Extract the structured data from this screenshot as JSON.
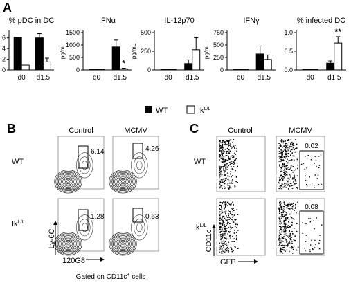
{
  "panel_labels": {
    "a": "A",
    "b": "B",
    "c": "C"
  },
  "legend": {
    "wt": "WT",
    "ik_base": "Ik",
    "ik_sup": "L/L"
  },
  "chart_data": [
    {
      "type": "bar",
      "title": "% pDC in DC",
      "ylabel": "",
      "ylim": [
        0,
        7
      ],
      "yticks": [
        {
          "v": 0,
          "t": "0"
        },
        {
          "v": 2,
          "t": "2"
        },
        {
          "v": 4,
          "t": "4"
        },
        {
          "v": 6,
          "t": "6"
        }
      ],
      "categories": [
        "d0",
        "d1.5"
      ],
      "series": [
        {
          "name": "WT",
          "values": [
            6.1,
            6.0
          ],
          "errors": [
            0,
            0.8
          ]
        },
        {
          "name": "IkL/L",
          "values": [
            0.9,
            1.5
          ],
          "errors": [
            0,
            0.7
          ]
        }
      ],
      "annotations": []
    },
    {
      "type": "bar",
      "title": "IFNα",
      "ylabel": "pg/mL",
      "ylim": [
        0,
        1500
      ],
      "yticks": [
        {
          "v": 0,
          "t": "0"
        },
        {
          "v": 500,
          "t": "500"
        },
        {
          "v": 1000,
          "t": "1000"
        },
        {
          "v": 1500,
          "t": "1500"
        }
      ],
      "categories": [
        "d0",
        "d1.5"
      ],
      "series": [
        {
          "name": "WT",
          "values": [
            0,
            920
          ],
          "errors": [
            0,
            280
          ]
        },
        {
          "name": "IkL/L",
          "values": [
            0,
            40
          ],
          "errors": [
            0,
            30
          ]
        }
      ],
      "annotations": [
        {
          "series": 1,
          "category": 1,
          "text": "*"
        }
      ]
    },
    {
      "type": "bar",
      "title": "IL-12p70",
      "ylabel": "pg/mL",
      "ylim": [
        0,
        500
      ],
      "yticks": [
        {
          "v": 0,
          "t": "0"
        },
        {
          "v": 250,
          "t": "250"
        },
        {
          "v": 500,
          "t": "500"
        }
      ],
      "categories": [
        "d0",
        "d1.5"
      ],
      "series": [
        {
          "name": "WT",
          "values": [
            0,
            85
          ],
          "errors": [
            0,
            50
          ]
        },
        {
          "name": "IkL/L",
          "values": [
            0,
            270
          ],
          "errors": [
            0,
            160
          ]
        }
      ],
      "annotations": []
    },
    {
      "type": "bar",
      "title": "IFNγ",
      "ylabel": "pg/mL",
      "ylim": [
        0,
        750
      ],
      "yticks": [
        {
          "v": 0,
          "t": "0"
        },
        {
          "v": 250,
          "t": "250"
        },
        {
          "v": 500,
          "t": "500"
        },
        {
          "v": 750,
          "t": "750"
        }
      ],
      "categories": [
        "d0",
        "d1.5"
      ],
      "series": [
        {
          "name": "WT",
          "values": [
            0,
            320
          ],
          "errors": [
            0,
            160
          ]
        },
        {
          "name": "IkL/L",
          "values": [
            0,
            210
          ],
          "errors": [
            0,
            90
          ]
        }
      ],
      "annotations": []
    },
    {
      "type": "bar",
      "title": "% infected DC",
      "ylabel": "",
      "ylim": [
        0,
        1.0
      ],
      "yticks": [
        {
          "v": 0,
          "t": "0.0"
        },
        {
          "v": 0.5,
          "t": "0.5"
        },
        {
          "v": 1.0,
          "t": "1.0"
        }
      ],
      "categories": [
        "d0",
        "d1.5"
      ],
      "series": [
        {
          "name": "WT",
          "values": [
            0,
            0.18
          ],
          "errors": [
            0,
            0.06
          ]
        },
        {
          "name": "IkL/L",
          "values": [
            0,
            0.72
          ],
          "errors": [
            0,
            0.17
          ]
        }
      ],
      "annotations": [
        {
          "series": 1,
          "category": 1,
          "text": "**"
        }
      ]
    }
  ],
  "flow_b": {
    "col_headers": [
      "Control",
      "MCMV"
    ],
    "row_labels": {
      "wt": "WT",
      "ik_base": "Ik",
      "ik_sup": "L/L"
    },
    "gate_values": [
      "6.14",
      "4.26",
      "1.28",
      "0.63"
    ],
    "y_axis": "Ly-6C",
    "x_axis": "120G8",
    "footnote_base": "Gated on CD11c",
    "footnote_sup": "+",
    "footnote_tail": " cells"
  },
  "flow_c": {
    "col_headers": [
      "Control",
      "MCMV"
    ],
    "row_labels": {
      "wt": "WT",
      "ik_base": "Ik",
      "ik_sup": "L/L"
    },
    "gate_values": [
      "0.02",
      "0.08"
    ],
    "y_axis": "CD11c",
    "x_axis": "GFP"
  }
}
